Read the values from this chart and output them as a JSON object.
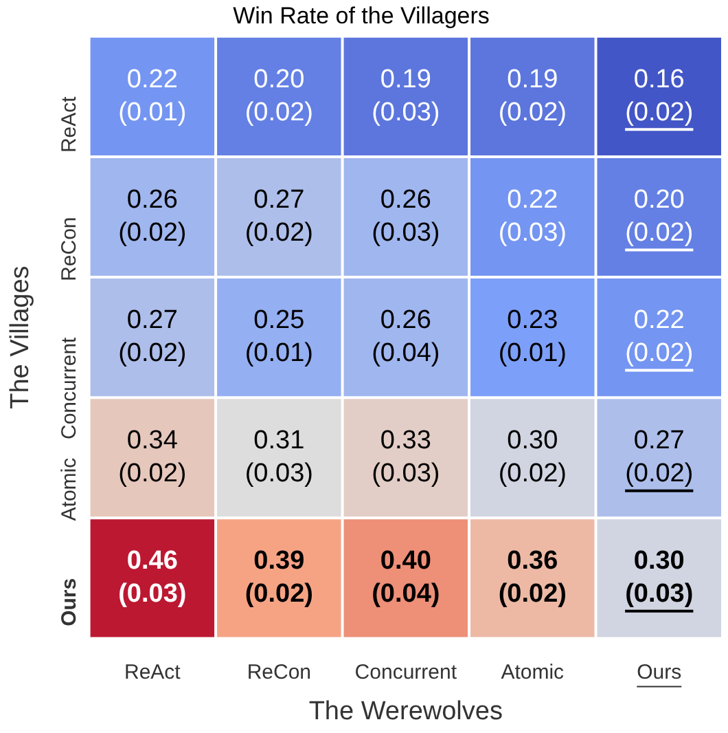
{
  "chart_data": {
    "type": "heatmap",
    "title": "Win Rate of the Villagers",
    "xlabel": "The Werewolves",
    "ylabel": "The Villages",
    "categories": [
      "ReAct",
      "ReCon",
      "Concurrent",
      "Atomic",
      "Ours"
    ],
    "y_categories": [
      "ReAct",
      "ReCon",
      "Concurrent",
      "Atomic",
      "Ours"
    ],
    "cells": [
      [
        0.22,
        0.2,
        0.19,
        0.19,
        0.16
      ],
      [
        0.26,
        0.27,
        0.26,
        0.22,
        0.2
      ],
      [
        0.27,
        0.25,
        0.26,
        0.23,
        0.22
      ],
      [
        0.34,
        0.31,
        0.33,
        0.3,
        0.27
      ],
      [
        0.46,
        0.39,
        0.4,
        0.36,
        0.3
      ]
    ],
    "data_labels": true,
    "cell_labels": [
      [
        "0.22",
        "0.20",
        "0.19",
        "0.19",
        "0.16"
      ],
      [
        "0.26",
        "0.27",
        "0.26",
        "0.22",
        "0.20"
      ],
      [
        "0.27",
        "0.25",
        "0.26",
        "0.23",
        "0.22"
      ],
      [
        "0.34",
        "0.31",
        "0.33",
        "0.30",
        "0.27"
      ],
      [
        "0.46",
        "0.39",
        "0.40",
        "0.36",
        "0.30"
      ]
    ],
    "annotations": [
      "(0.01)",
      "(0.02)",
      "(0.03)",
      "(0.02)",
      "(0.02)",
      "(0.02)",
      "(0.02)",
      "(0.03)",
      "(0.03)",
      "(0.02)",
      "(0.02)",
      "(0.01)",
      "(0.04)",
      "(0.01)",
      "(0.02)",
      "(0.02)",
      "(0.03)",
      "(0.03)",
      "(0.02)",
      "(0.02)",
      "(0.03)",
      "(0.02)",
      "(0.04)",
      "(0.02)",
      "(0.03)"
    ]
  }
}
